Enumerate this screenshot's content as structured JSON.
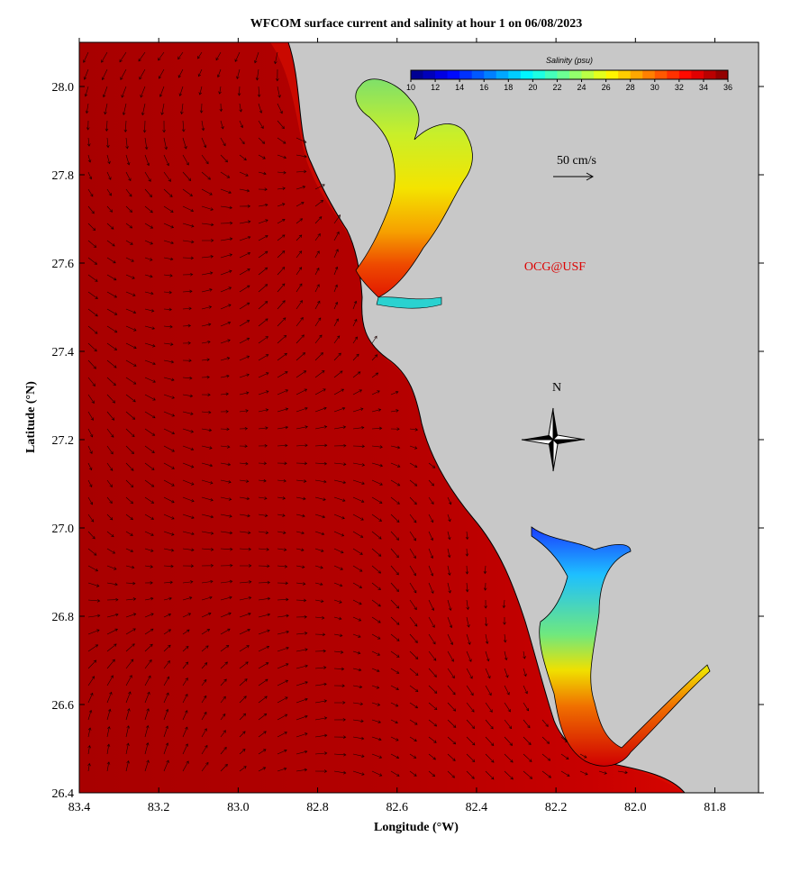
{
  "title": "WFCOM surface current and salinity at hour 1 on 06/08/2023",
  "xlabel": "Longitude (°W)",
  "ylabel": "Latitude (°N)",
  "xlim": [
    83.4,
    81.69
  ],
  "ylim": [
    26.4,
    28.1
  ],
  "xticks": [
    83.4,
    83.2,
    {
      "value": 83,
      "label": "83.0"
    },
    82.8,
    82.6,
    82.4,
    82.2,
    {
      "value": 82,
      "label": "82.0"
    },
    81.8
  ],
  "yticks": [
    26.4,
    26.6,
    26.8,
    {
      "value": 27,
      "label": "27.0"
    },
    27.2,
    27.4,
    27.6,
    27.8,
    {
      "value": 28,
      "label": "28.0"
    }
  ],
  "colorbar": {
    "label": "Salinity (psu)",
    "ticks": [
      10,
      12,
      14,
      16,
      18,
      20,
      22,
      24,
      26,
      28,
      30,
      32,
      34,
      36
    ]
  },
  "scale_label": "50 cm/s",
  "credit": "OCG@USF",
  "north_label": "N"
}
